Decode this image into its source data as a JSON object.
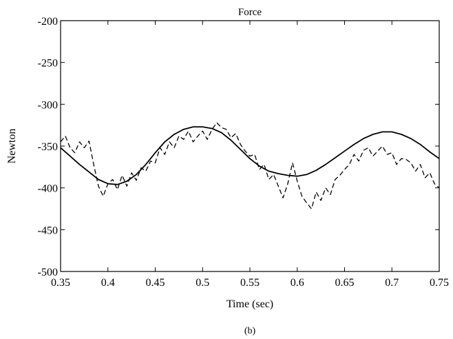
{
  "chart_data": {
    "type": "line",
    "title": "Force",
    "xlabel": "Time (sec)",
    "ylabel": "Newton",
    "caption": "(b)",
    "xlim": [
      0.35,
      0.75
    ],
    "ylim": [
      -500,
      -200
    ],
    "xticks": [
      "0.35",
      "0.4",
      "0.45",
      "0.5",
      "0.55",
      "0.6",
      "0.65",
      "0.7",
      "0.75"
    ],
    "yticks": [
      "-200",
      "-250",
      "-300",
      "-350",
      "-400",
      "-450",
      "-500"
    ],
    "grid": false,
    "series": [
      {
        "style": "solid",
        "x": [
          0.35,
          0.36,
          0.37,
          0.38,
          0.39,
          0.4,
          0.41,
          0.42,
          0.43,
          0.44,
          0.45,
          0.46,
          0.47,
          0.48,
          0.49,
          0.5,
          0.51,
          0.52,
          0.53,
          0.54,
          0.55,
          0.56,
          0.57,
          0.58,
          0.59,
          0.6,
          0.61,
          0.62,
          0.63,
          0.64,
          0.65,
          0.66,
          0.67,
          0.68,
          0.69,
          0.7,
          0.71,
          0.72,
          0.73,
          0.74,
          0.75
        ],
        "values": [
          -352,
          -362,
          -372,
          -381,
          -390,
          -395,
          -396,
          -392,
          -384,
          -372,
          -358,
          -345,
          -336,
          -330,
          -327,
          -327,
          -329,
          -334,
          -343,
          -354,
          -365,
          -374,
          -380,
          -383,
          -385,
          -386,
          -384,
          -379,
          -372,
          -364,
          -356,
          -348,
          -341,
          -336,
          -333,
          -333,
          -336,
          -341,
          -348,
          -357,
          -365
        ]
      },
      {
        "style": "dashed",
        "x": [
          0.35,
          0.355,
          0.36,
          0.365,
          0.37,
          0.375,
          0.38,
          0.385,
          0.39,
          0.395,
          0.4,
          0.405,
          0.41,
          0.415,
          0.42,
          0.425,
          0.43,
          0.435,
          0.44,
          0.445,
          0.45,
          0.455,
          0.46,
          0.465,
          0.47,
          0.475,
          0.48,
          0.485,
          0.49,
          0.495,
          0.5,
          0.505,
          0.51,
          0.515,
          0.52,
          0.525,
          0.53,
          0.535,
          0.54,
          0.545,
          0.55,
          0.555,
          0.56,
          0.565,
          0.57,
          0.575,
          0.58,
          0.585,
          0.59,
          0.595,
          0.6,
          0.605,
          0.61,
          0.615,
          0.62,
          0.625,
          0.63,
          0.635,
          0.64,
          0.645,
          0.65,
          0.655,
          0.66,
          0.665,
          0.67,
          0.675,
          0.68,
          0.685,
          0.69,
          0.695,
          0.7,
          0.705,
          0.71,
          0.715,
          0.72,
          0.725,
          0.73,
          0.735,
          0.74,
          0.745,
          0.75
        ],
        "values": [
          -345,
          -338,
          -352,
          -358,
          -345,
          -352,
          -344,
          -372,
          -398,
          -410,
          -395,
          -390,
          -402,
          -385,
          -398,
          -382,
          -391,
          -376,
          -380,
          -368,
          -370,
          -352,
          -360,
          -345,
          -352,
          -338,
          -342,
          -332,
          -345,
          -338,
          -332,
          -342,
          -330,
          -322,
          -328,
          -330,
          -340,
          -335,
          -348,
          -356,
          -362,
          -360,
          -378,
          -372,
          -390,
          -384,
          -398,
          -412,
          -395,
          -370,
          -392,
          -410,
          -418,
          -425,
          -405,
          -415,
          -400,
          -408,
          -390,
          -385,
          -378,
          -372,
          -360,
          -368,
          -355,
          -352,
          -362,
          -356,
          -350,
          -360,
          -358,
          -372,
          -365,
          -366,
          -370,
          -380,
          -372,
          -388,
          -382,
          -395,
          -400
        ]
      }
    ]
  }
}
